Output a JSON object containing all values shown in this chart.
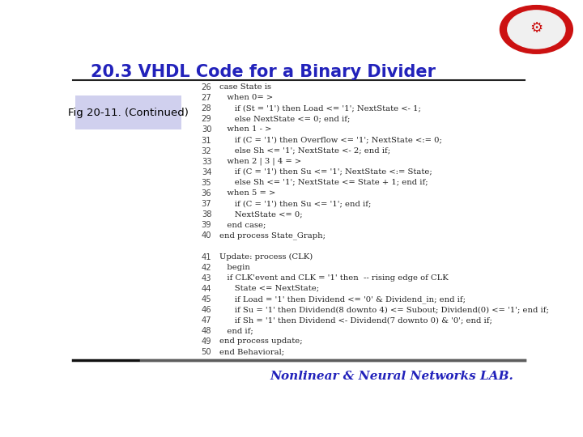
{
  "title": "20.3 VHDL Code for a Binary Divider",
  "title_color": "#2222bb",
  "title_fontsize": 15,
  "fig_label": "Fig 20-11. (Continued)",
  "fig_label_box_color": "#d0d0ee",
  "background_color": "#ffffff",
  "bottom_text": "Nonlinear & Neural Networks LAB.",
  "bottom_text_color": "#2222bb",
  "code_lines": [
    [
      "26",
      "case State is"
    ],
    [
      "27",
      "   when 0= >"
    ],
    [
      "28",
      "      if (St = '1') then Load <= '1'; NextState <- 1;"
    ],
    [
      "29",
      "      else NextState <= 0; end if;"
    ],
    [
      "30",
      "   when 1 - >"
    ],
    [
      "31",
      "      if (C = '1') then Overflow <= '1'; NextState <:= 0;"
    ],
    [
      "32",
      "      else Sh <= '1'; NextState <- 2; end if;"
    ],
    [
      "33",
      "   when 2 | 3 | 4 = >"
    ],
    [
      "34",
      "      if (C = '1') then Su <= '1'; NextState <:= State;"
    ],
    [
      "35",
      "      else Sh <= '1'; NextState <= State + 1; end if;"
    ],
    [
      "36",
      "   when 5 = >"
    ],
    [
      "37",
      "      if (C = '1') then Su <= '1'; end if;"
    ],
    [
      "38",
      "      NextState <= 0;"
    ],
    [
      "39",
      "   end case;"
    ],
    [
      "40",
      "end process State_Graph;"
    ],
    [
      "",
      ""
    ],
    [
      "41",
      "Update: process (CLK)"
    ],
    [
      "42",
      "   begin"
    ],
    [
      "43",
      "   if CLK'event and CLK = '1' then  -- rising edge of CLK"
    ],
    [
      "44",
      "      State <= NextState;"
    ],
    [
      "45",
      "      if Load = '1' then Dividend <= '0' & Dividend_in; end if;"
    ],
    [
      "46",
      "      if Su = '1' then Dividend(8 downto 4) <= Subout; Dividend(0) <= '1'; end if;"
    ],
    [
      "47",
      "      if Sh = '1' then Dividend <- Dividend(7 downto 0) & '0'; end if;"
    ],
    [
      "48",
      "   end if;"
    ],
    [
      "49",
      "end process update;"
    ],
    [
      "50",
      "end Behavioral;"
    ]
  ],
  "line_number_color": "#444444",
  "code_color": "#222222",
  "separator_color": "#222222"
}
